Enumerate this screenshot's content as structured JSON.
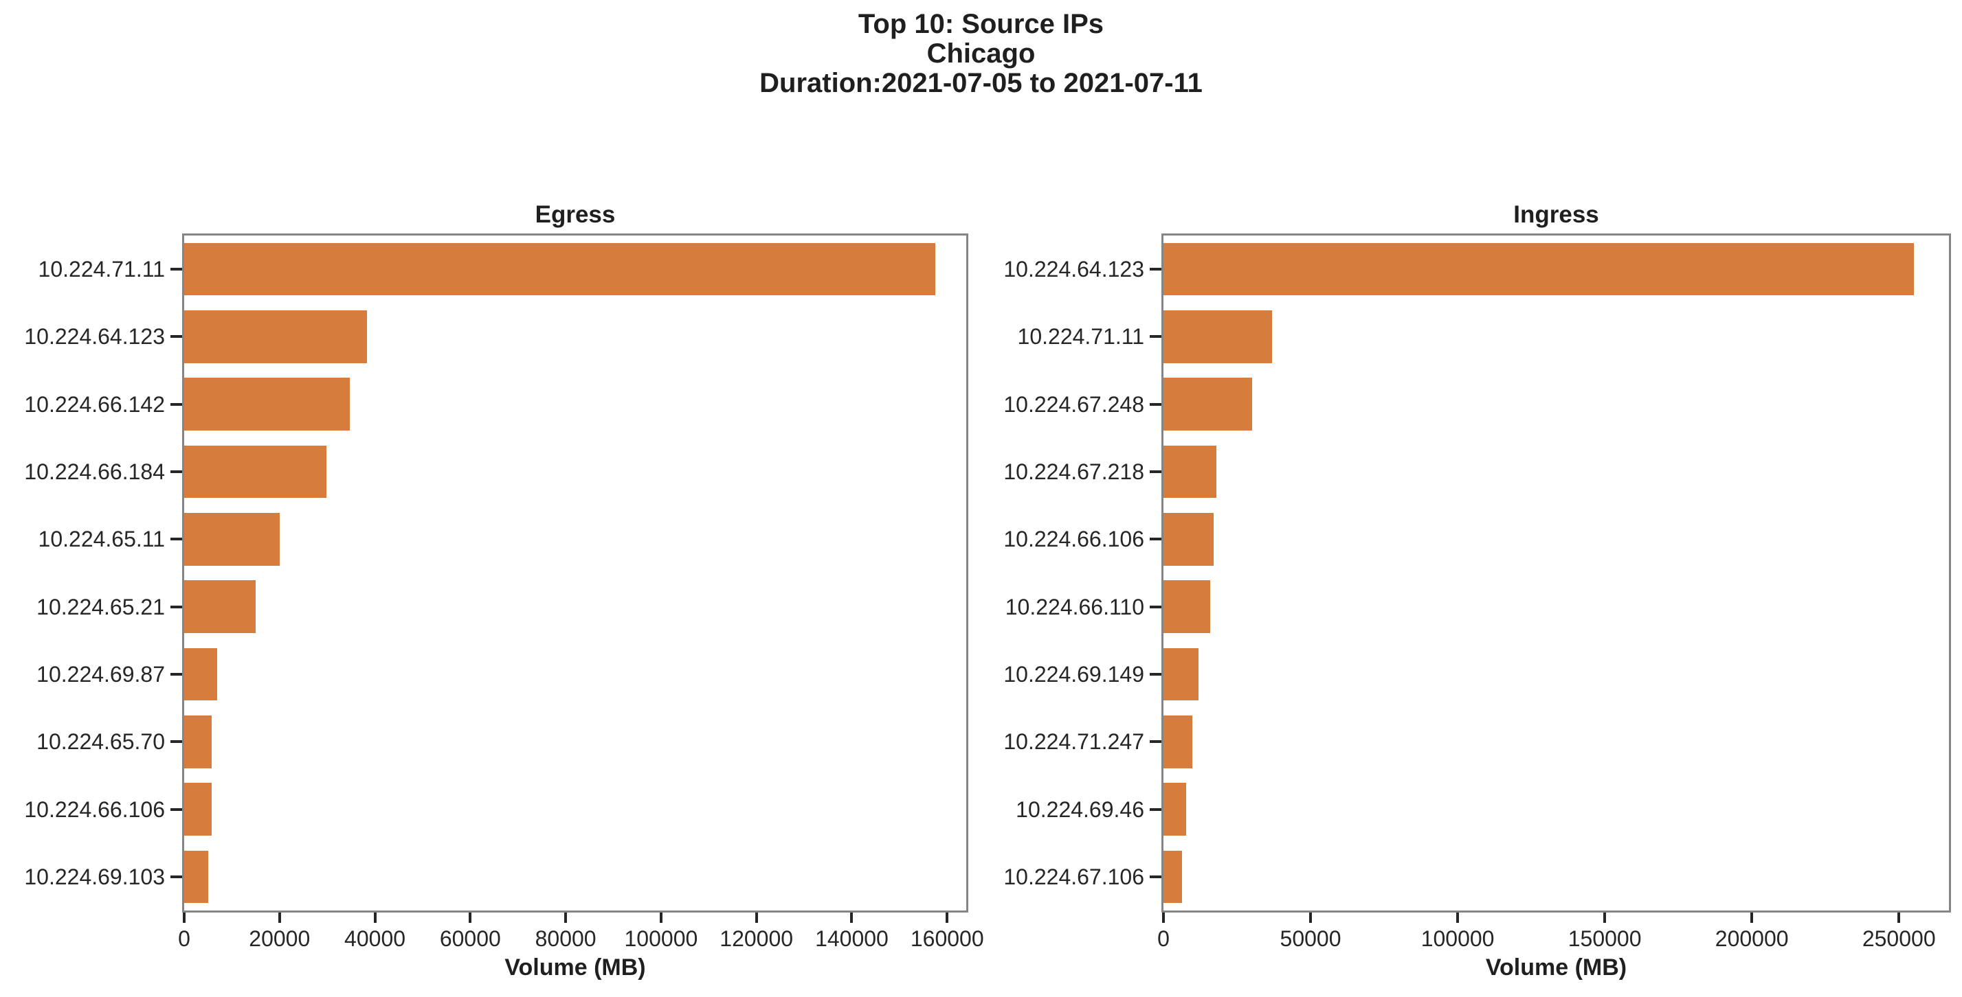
{
  "title": {
    "line1": "Top 10: Source IPs",
    "line2": "Chicago",
    "line3": "Duration:2021-07-05 to 2021-07-11"
  },
  "colors": {
    "bar": "#d67c3c",
    "frame": "#858585",
    "tick": "#262626",
    "text": "#262626"
  },
  "chart_data": [
    {
      "type": "bar",
      "orientation": "horizontal",
      "title": "Egress",
      "xlabel": "Volume (MB)",
      "categories": [
        "10.224.71.11",
        "10.224.64.123",
        "10.224.66.142",
        "10.224.66.184",
        "10.224.65.11",
        "10.224.65.21",
        "10.224.69.87",
        "10.224.65.70",
        "10.224.66.106",
        "10.224.69.103"
      ],
      "values": [
        157500,
        38400,
        34700,
        29800,
        20000,
        15000,
        6900,
        5800,
        5700,
        5000
      ],
      "xlim": [
        0,
        164000
      ],
      "xticks": [
        0,
        20000,
        40000,
        60000,
        80000,
        100000,
        120000,
        140000,
        160000
      ],
      "xtick_labels": [
        "0",
        "20000",
        "40000",
        "60000",
        "80000",
        "100000",
        "120000",
        "140000",
        "160000"
      ],
      "grid": false,
      "bar_color": "#d67c3c"
    },
    {
      "type": "bar",
      "orientation": "horizontal",
      "title": "Ingress",
      "xlabel": "Volume (MB)",
      "categories": [
        "10.224.64.123",
        "10.224.71.11",
        "10.224.67.248",
        "10.224.67.218",
        "10.224.66.106",
        "10.224.66.110",
        "10.224.69.149",
        "10.224.71.247",
        "10.224.69.46",
        "10.224.67.106"
      ],
      "values": [
        255000,
        37000,
        30100,
        18100,
        17000,
        15800,
        11900,
        9900,
        7800,
        6400
      ],
      "xlim": [
        0,
        267000
      ],
      "xticks": [
        0,
        50000,
        100000,
        150000,
        200000,
        250000
      ],
      "xtick_labels": [
        "0",
        "50000",
        "100000",
        "150000",
        "200000",
        "250000"
      ],
      "grid": false,
      "bar_color": "#d67c3c"
    }
  ]
}
